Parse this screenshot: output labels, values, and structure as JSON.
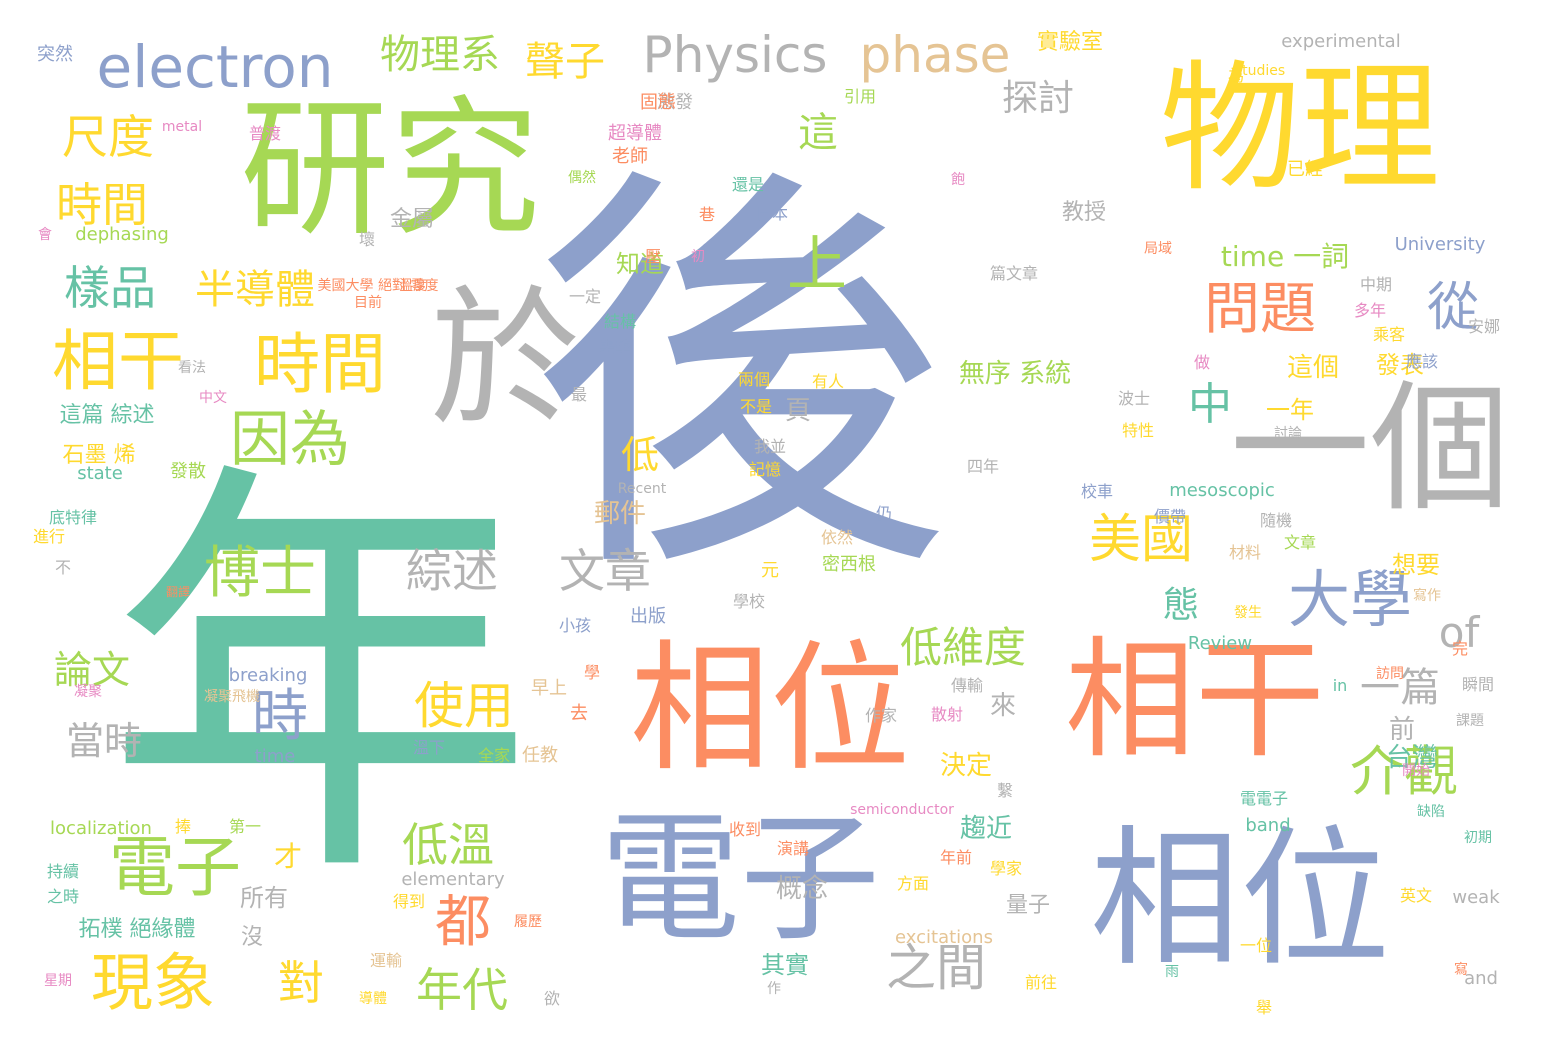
{
  "palette": {
    "green": "#66c2a5",
    "orange": "#fc8d62",
    "blue": "#8da0cb",
    "pink": "#e78ac3",
    "lime": "#a6d854",
    "yellow": "#ffd92f",
    "tan": "#e5c494",
    "gray": "#b3b3b3"
  },
  "words": [
    {
      "text": "後"
    },
    {
      "text": "年"
    },
    {
      "text": "研究"
    },
    {
      "text": "物理"
    },
    {
      "text": "於"
    },
    {
      "text": "一個"
    },
    {
      "text": "相位"
    },
    {
      "text": "相干"
    },
    {
      "text": "電子"
    },
    {
      "text": "相位"
    },
    {
      "text": "electron"
    },
    {
      "text": "Physics"
    },
    {
      "text": "phase"
    },
    {
      "text": "物理系"
    },
    {
      "text": "聲子"
    },
    {
      "text": "尺度"
    },
    {
      "text": "時間"
    },
    {
      "text": "樣品"
    },
    {
      "text": "相干"
    },
    {
      "text": "時間"
    },
    {
      "text": "因為"
    },
    {
      "text": "半導體"
    },
    {
      "text": "問題"
    },
    {
      "text": "從"
    },
    {
      "text": "大學"
    },
    {
      "text": "美國"
    },
    {
      "text": "博士"
    },
    {
      "text": "綜述"
    },
    {
      "text": "文章"
    },
    {
      "text": "電子"
    },
    {
      "text": "現象"
    },
    {
      "text": "上"
    },
    {
      "text": "中"
    },
    {
      "text": "介觀"
    },
    {
      "text": "使用"
    },
    {
      "text": "時"
    },
    {
      "text": "都"
    },
    {
      "text": "低溫"
    },
    {
      "text": "年代"
    },
    {
      "text": "之間"
    },
    {
      "text": "低維度"
    },
    {
      "text": "of"
    },
    {
      "text": "一篇"
    },
    {
      "text": "論文"
    },
    {
      "text": "當時"
    },
    {
      "text": "對"
    },
    {
      "text": "探討"
    },
    {
      "text": "這"
    },
    {
      "text": "無序 系統"
    },
    {
      "text": "time 一詞"
    },
    {
      "text": "態"
    },
    {
      "text": "實驗室"
    },
    {
      "text": "experimental"
    },
    {
      "text": "教授"
    },
    {
      "text": "金屬"
    },
    {
      "text": "知道"
    },
    {
      "text": "低"
    },
    {
      "text": "這篇 綜述"
    },
    {
      "text": "石墨 烯"
    },
    {
      "text": "拓樸 絕緣體"
    },
    {
      "text": "所有"
    },
    {
      "text": "沒"
    },
    {
      "text": "才"
    },
    {
      "text": "郵件"
    },
    {
      "text": "來"
    },
    {
      "text": "決定"
    },
    {
      "text": "趨近"
    },
    {
      "text": "概念"
    },
    {
      "text": "其實"
    },
    {
      "text": "頁"
    },
    {
      "text": "量子"
    },
    {
      "text": "這個"
    },
    {
      "text": "發表"
    },
    {
      "text": "一年"
    },
    {
      "text": "台灣"
    },
    {
      "text": "前"
    },
    {
      "text": "localization"
    },
    {
      "text": "dephasing"
    },
    {
      "text": "University"
    },
    {
      "text": "mesoscopic"
    },
    {
      "text": "Review"
    },
    {
      "text": "breaking"
    },
    {
      "text": "time"
    },
    {
      "text": "elementary"
    },
    {
      "text": "excitations"
    },
    {
      "text": "semiconductor"
    },
    {
      "text": "weak"
    },
    {
      "text": "and"
    },
    {
      "text": "band"
    },
    {
      "text": "in"
    },
    {
      "text": "Recent"
    },
    {
      "text": "studies"
    },
    {
      "text": "state"
    },
    {
      "text": "metal"
    },
    {
      "text": "突然"
    },
    {
      "text": "普渡"
    },
    {
      "text": "超導體"
    },
    {
      "text": "老師"
    },
    {
      "text": "激發"
    },
    {
      "text": "固態"
    },
    {
      "text": "引用"
    },
    {
      "text": "為"
    },
    {
      "text": "已經"
    },
    {
      "text": "還是"
    },
    {
      "text": "日本"
    },
    {
      "text": "局域"
    },
    {
      "text": "篇文章"
    },
    {
      "text": "中期"
    },
    {
      "text": "多年"
    },
    {
      "text": "乘客"
    },
    {
      "text": "應該"
    },
    {
      "text": "安娜"
    },
    {
      "text": "做"
    },
    {
      "text": "兩個"
    },
    {
      "text": "有人"
    },
    {
      "text": "不是"
    },
    {
      "text": "我並"
    },
    {
      "text": "記憶"
    },
    {
      "text": "波士"
    },
    {
      "text": "特性"
    },
    {
      "text": "討論"
    },
    {
      "text": "四年"
    },
    {
      "text": "校車"
    },
    {
      "text": "價帶"
    },
    {
      "text": "隨機"
    },
    {
      "text": "文章"
    },
    {
      "text": "材料"
    },
    {
      "text": "想要"
    },
    {
      "text": "寫作"
    },
    {
      "text": "發生"
    },
    {
      "text": "完"
    },
    {
      "text": "瞬間"
    },
    {
      "text": "課題"
    },
    {
      "text": "訪問"
    },
    {
      "text": "發散"
    },
    {
      "text": "美國大學 絕對 零度"
    },
    {
      "text": "溫度"
    },
    {
      "text": "目前"
    },
    {
      "text": "一定"
    },
    {
      "text": "結構"
    },
    {
      "text": "襲擊"
    },
    {
      "text": "看法"
    },
    {
      "text": "中文"
    },
    {
      "text": "最"
    },
    {
      "text": "元"
    },
    {
      "text": "密西根"
    },
    {
      "text": "學校"
    },
    {
      "text": "小孩"
    },
    {
      "text": "出版"
    },
    {
      "text": "依然"
    },
    {
      "text": "仍"
    },
    {
      "text": "溫下"
    },
    {
      "text": "全家"
    },
    {
      "text": "任教"
    },
    {
      "text": "早上"
    },
    {
      "text": "去"
    },
    {
      "text": "散射"
    },
    {
      "text": "傳輸"
    },
    {
      "text": "作家"
    },
    {
      "text": "繫"
    },
    {
      "text": "底特律"
    },
    {
      "text": "進行"
    },
    {
      "text": "不"
    },
    {
      "text": "翻譯"
    },
    {
      "text": "凝聚"
    },
    {
      "text": "凝聚飛機"
    },
    {
      "text": "學"
    },
    {
      "text": "捧"
    },
    {
      "text": "第一"
    },
    {
      "text": "持續"
    },
    {
      "text": "之時"
    },
    {
      "text": "得到"
    },
    {
      "text": "演講"
    },
    {
      "text": "收到"
    },
    {
      "text": "年前"
    },
    {
      "text": "學家"
    },
    {
      "text": "方面"
    },
    {
      "text": "星期"
    },
    {
      "text": "運輸"
    },
    {
      "text": "導體"
    },
    {
      "text": "作"
    },
    {
      "text": "欲"
    },
    {
      "text": "前往"
    },
    {
      "text": "雨"
    },
    {
      "text": "舉"
    },
    {
      "text": "一位"
    },
    {
      "text": "寫"
    },
    {
      "text": "英文"
    },
    {
      "text": "初期"
    },
    {
      "text": "缺陷"
    },
    {
      "text": "電電子"
    },
    {
      "text": "開始"
    },
    {
      "text": "會"
    },
    {
      "text": "偶然"
    },
    {
      "text": "巷"
    },
    {
      "text": "飽"
    },
    {
      "text": "初"
    },
    {
      "text": "履歷"
    },
    {
      "text": "壓"
    },
    {
      "text": "壞"
    },
    {
      "text": "|"
    }
  ]
}
